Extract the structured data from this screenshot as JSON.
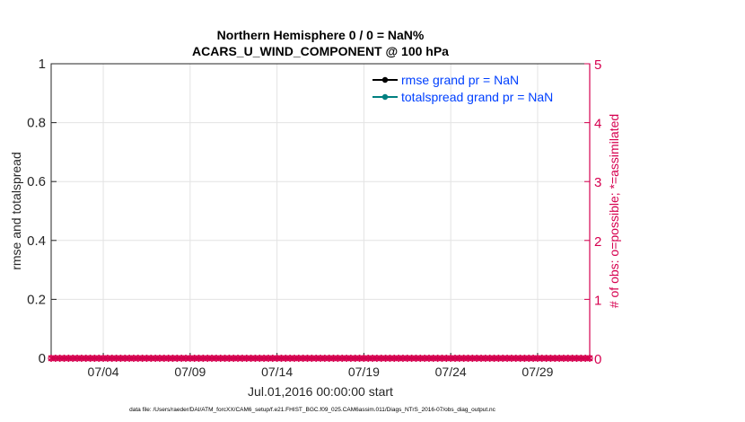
{
  "chart_data": {
    "type": "line",
    "title": "Northern Hemisphere 0 / 0 = NaN%",
    "subtitle": "ACARS_U_WIND_COMPONENT @ 100 hPa",
    "xlabel": "Jul.01,2016 00:00:00 start",
    "ylabel": "rmse and totalspread",
    "ylabel_right": "# of obs: o=possible; *=assimilated",
    "xlim": [
      "2016-07-01 00:00",
      "2016-08-01 00:00"
    ],
    "ylim": [
      0,
      1
    ],
    "ylim_right": [
      0,
      5
    ],
    "x_ticks": [
      {
        "date": "2016-07-04",
        "label": "07/04"
      },
      {
        "date": "2016-07-09",
        "label": "07/09"
      },
      {
        "date": "2016-07-14",
        "label": "07/14"
      },
      {
        "date": "2016-07-19",
        "label": "07/19"
      },
      {
        "date": "2016-07-24",
        "label": "07/24"
      },
      {
        "date": "2016-07-29",
        "label": "07/29"
      }
    ],
    "y_ticks": [
      "0",
      "0.2",
      "0.4",
      "0.6",
      "0.8",
      "1"
    ],
    "y_ticks_right": [
      "0",
      "1",
      "2",
      "3",
      "4",
      "5"
    ],
    "grid": true,
    "legend_placement": "top-right",
    "series": [
      {
        "name": "rmse grand pr = NaN",
        "color": "#000000",
        "axis": "left",
        "values": []
      },
      {
        "name": "totalspread grand pr = NaN",
        "color": "#008080",
        "axis": "left",
        "values": []
      },
      {
        "axis": "right",
        "color": "#D6004F",
        "marker": "o",
        "value_all": 0
      },
      {
        "axis": "right",
        "color": "#D6004F",
        "marker": "*",
        "value_all": 0
      }
    ],
    "obs_interval_hours": 6,
    "legend_text_color": "#0040FF",
    "right_axis_color": "#D6004F"
  },
  "footer": "data file: /Users/raeder/DAI/ATM_forcXX/CAM6_setup/f.e21.FHIST_BGC.f09_025.CAM6assim.011/Diags_NTrS_2016-07/obs_diag_output.nc"
}
